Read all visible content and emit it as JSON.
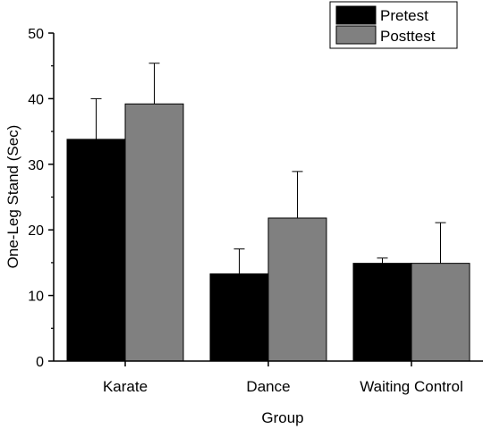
{
  "chart_data": {
    "type": "bar",
    "title": "",
    "xlabel": "Group",
    "ylabel": "One-Leg Stand (Sec)",
    "categories": [
      "Karate",
      "Dance",
      "Waiting Control"
    ],
    "series": [
      {
        "name": "Pretest",
        "color": "#000000",
        "values": [
          33.8,
          13.3,
          14.9
        ],
        "errors": [
          6.2,
          3.8,
          0.8
        ]
      },
      {
        "name": "Posttest",
        "color": "#808080",
        "values": [
          39.2,
          21.8,
          14.9
        ],
        "errors": [
          6.2,
          7.1,
          6.2
        ]
      }
    ],
    "ylim": [
      0,
      50
    ],
    "yticks": [
      0,
      10,
      20,
      30,
      40,
      50
    ],
    "grid": false,
    "legend_position": "top-right"
  }
}
